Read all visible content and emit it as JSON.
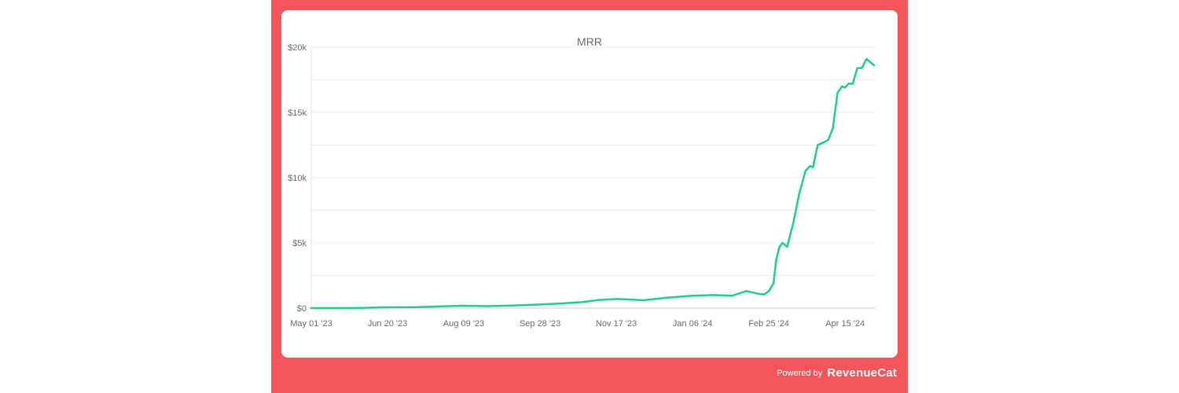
{
  "chart_data": {
    "type": "line",
    "title": "MRR",
    "xlabel": "",
    "ylabel": "",
    "y_ticks": [
      "$0",
      "$5k",
      "$10k",
      "$15k",
      "$20k"
    ],
    "x_ticks": [
      "May 01 '23",
      "Jun 20 '23",
      "Aug 09 '23",
      "Sep 28 '23",
      "Nov 17 '23",
      "Jan 06 '24",
      "Feb 25 '24",
      "Apr 15 '24"
    ],
    "ylim": [
      0,
      20000
    ],
    "xlim": [
      "2023-05-01",
      "2024-05-05"
    ],
    "grid": true,
    "line_color": "#1fce8b",
    "series": [
      {
        "x": [
          "2023-05-01",
          "2023-05-15",
          "2023-06-01",
          "2023-06-20",
          "2023-07-10",
          "2023-07-25",
          "2023-08-09",
          "2023-08-25",
          "2023-09-10",
          "2023-09-28",
          "2023-10-10",
          "2023-10-25",
          "2023-11-05",
          "2023-11-17",
          "2023-11-28",
          "2023-12-05",
          "2023-12-20",
          "2024-01-06",
          "2024-01-20",
          "2024-02-01",
          "2024-02-10",
          "2024-02-18",
          "2024-02-22",
          "2024-02-25",
          "2024-02-28",
          "2024-03-01",
          "2024-03-03",
          "2024-03-05",
          "2024-03-08",
          "2024-03-12",
          "2024-03-16",
          "2024-03-20",
          "2024-03-23",
          "2024-03-25",
          "2024-03-28",
          "2024-04-01",
          "2024-04-04",
          "2024-04-07",
          "2024-04-10",
          "2024-04-13",
          "2024-04-15",
          "2024-04-17",
          "2024-04-20",
          "2024-04-23",
          "2024-04-26",
          "2024-04-29",
          "2024-05-02",
          "2024-05-04"
        ],
        "values": [
          0,
          0,
          20,
          60,
          80,
          130,
          180,
          150,
          200,
          280,
          350,
          450,
          620,
          700,
          650,
          600,
          800,
          950,
          1000,
          950,
          1300,
          1100,
          1050,
          1300,
          1900,
          3800,
          4700,
          5000,
          4700,
          6500,
          8800,
          10500,
          10900,
          10800,
          12500,
          12700,
          12900,
          13800,
          16500,
          17000,
          16900,
          17200,
          17200,
          18400,
          18400,
          19100,
          18800,
          18600
        ]
      }
    ]
  },
  "footer": {
    "powered_by": "Powered by",
    "brand": "RevenueCat"
  }
}
